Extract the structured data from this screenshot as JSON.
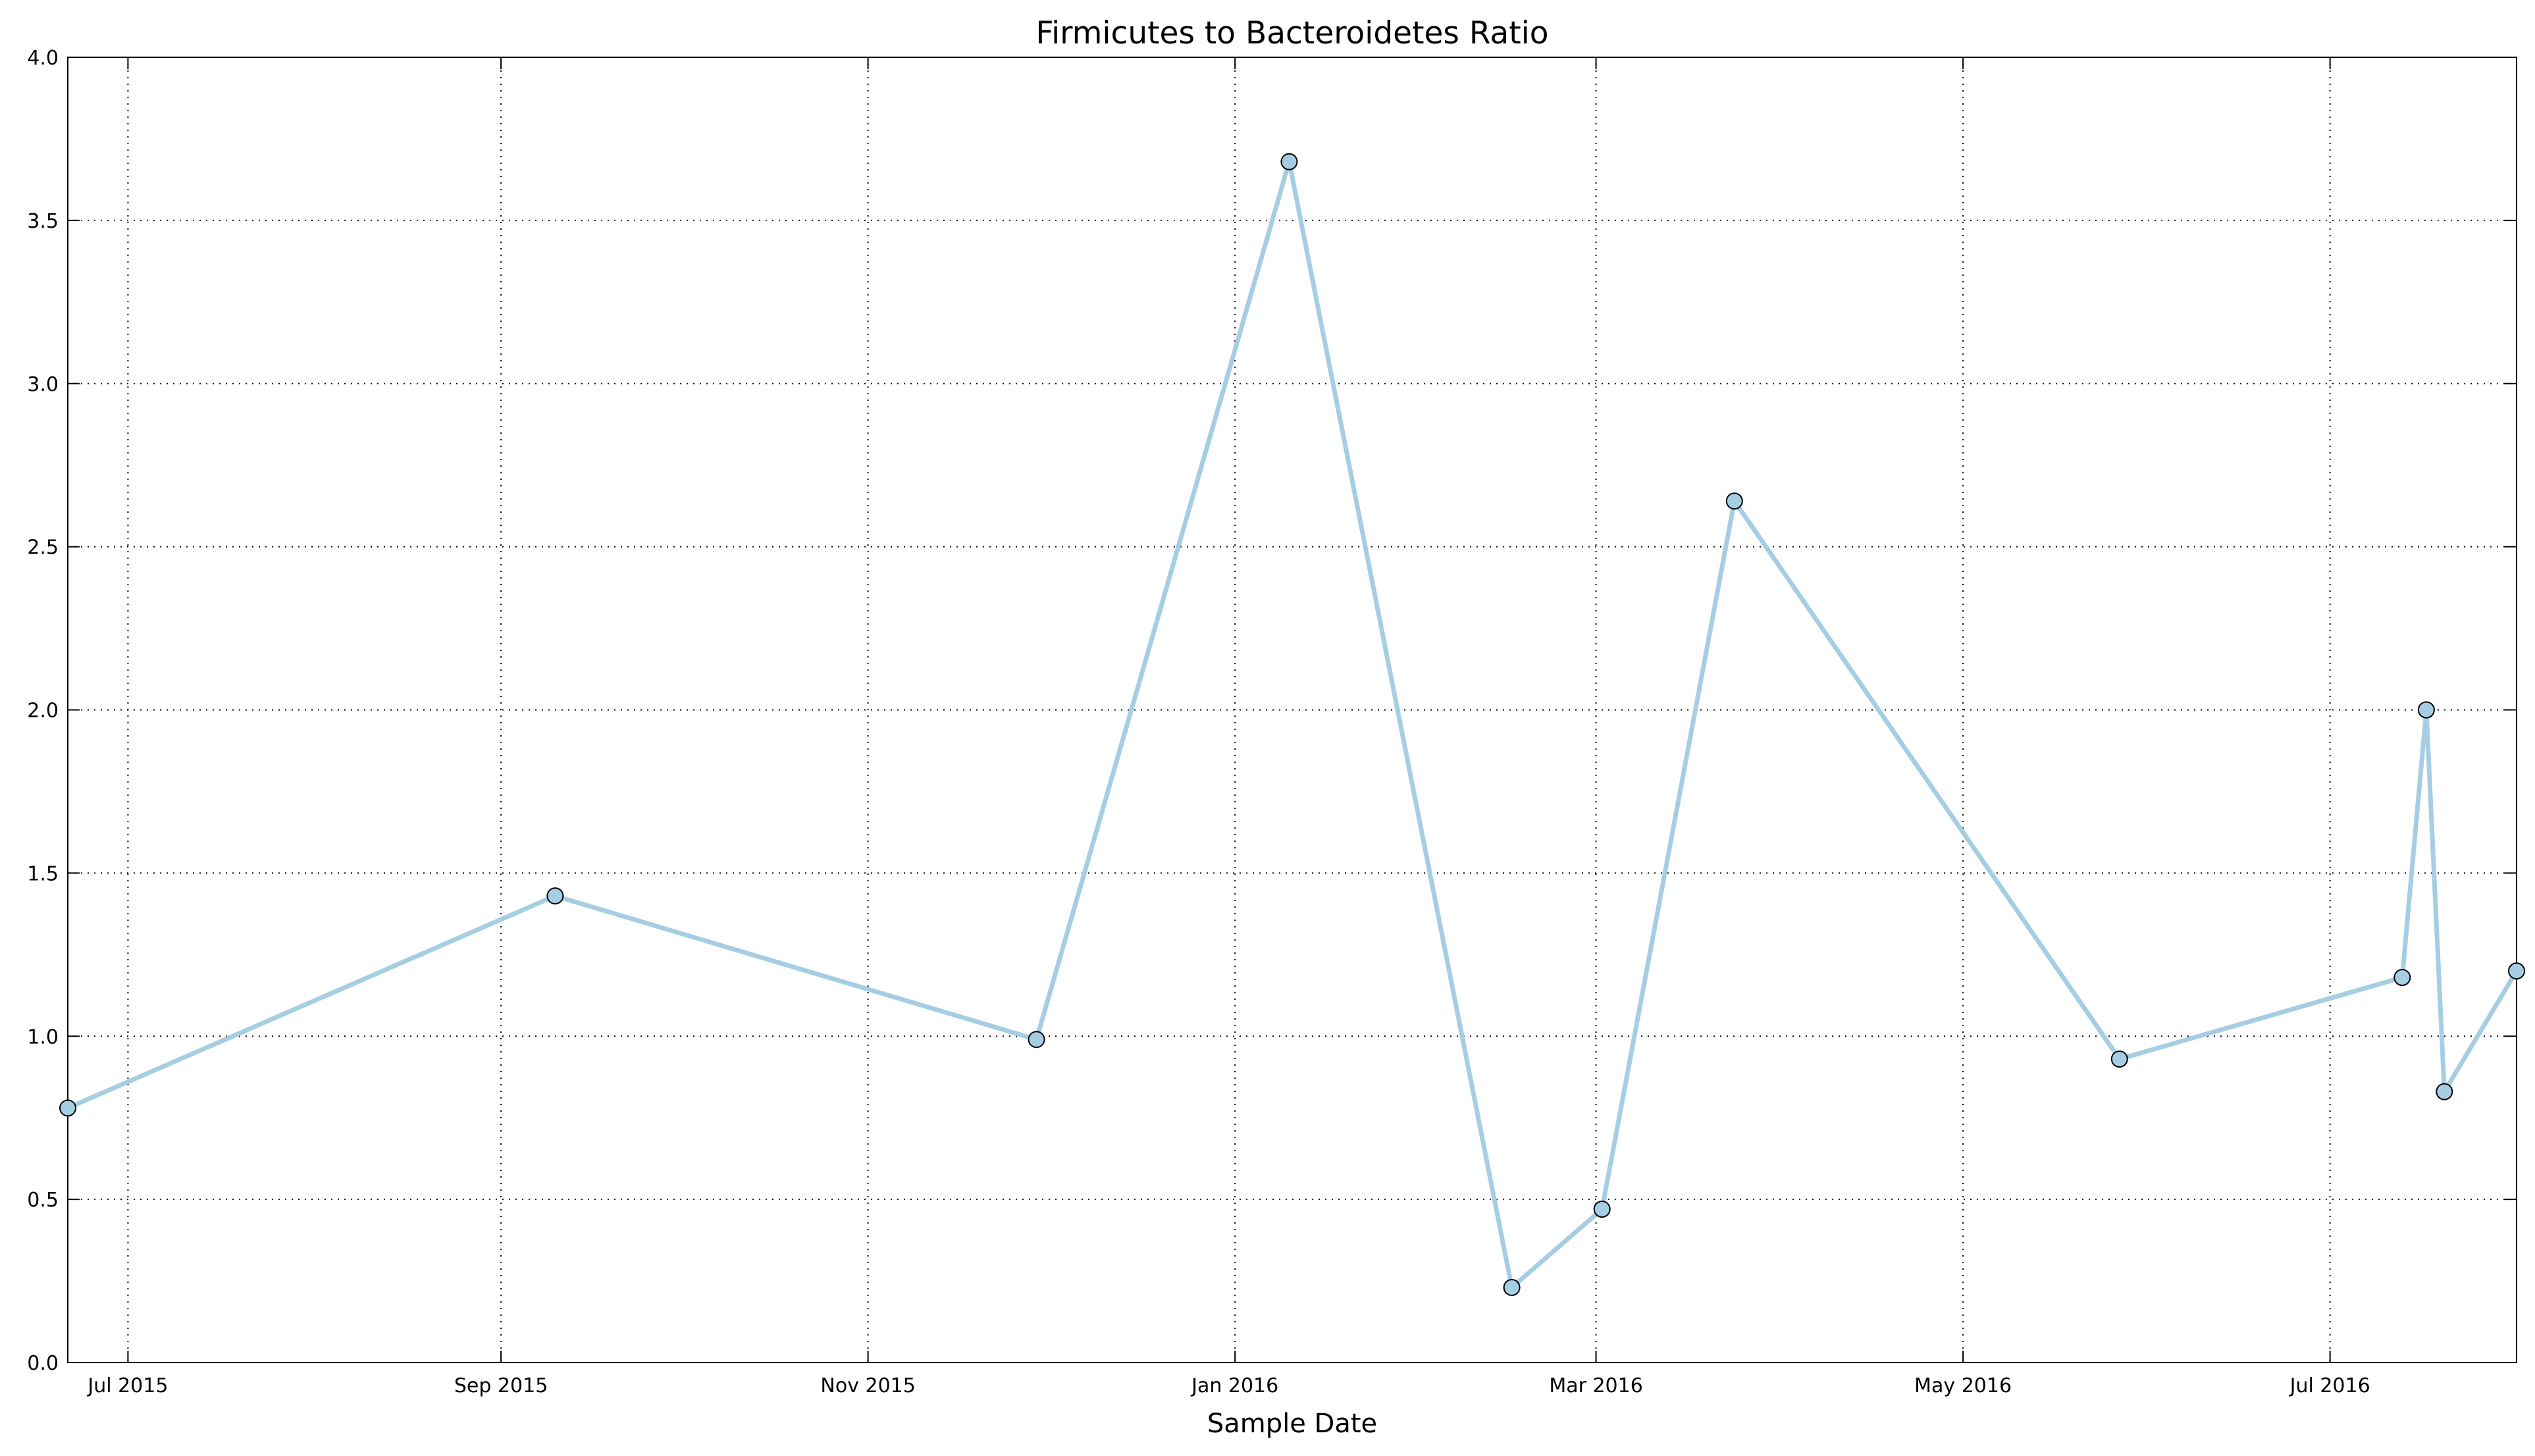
{
  "chart_data": {
    "type": "line",
    "title": "Firmicutes to Bacteroidetes Ratio",
    "xlabel": "Sample Date",
    "ylabel": "",
    "x_axis_type": "date",
    "xlim": [
      "2015-06-21",
      "2016-08-01"
    ],
    "ylim": [
      0.0,
      4.0
    ],
    "grid": true,
    "legend": "none",
    "line_color": "#a6cee3",
    "marker_color": "#a6cee3",
    "marker_edge_color": "#000000",
    "x_ticks": [
      {
        "date": "2015-07-01",
        "label": "Jul 2015"
      },
      {
        "date": "2015-09-01",
        "label": "Sep 2015"
      },
      {
        "date": "2015-11-01",
        "label": "Nov 2015"
      },
      {
        "date": "2016-01-01",
        "label": "Jan 2016"
      },
      {
        "date": "2016-03-01",
        "label": "Mar 2016"
      },
      {
        "date": "2016-05-01",
        "label": "May 2016"
      },
      {
        "date": "2016-07-01",
        "label": "Jul 2016"
      }
    ],
    "y_ticks": [
      {
        "value": 0.0,
        "label": "0.0"
      },
      {
        "value": 0.5,
        "label": "0.5"
      },
      {
        "value": 1.0,
        "label": "1.0"
      },
      {
        "value": 1.5,
        "label": "1.5"
      },
      {
        "value": 2.0,
        "label": "2.0"
      },
      {
        "value": 2.5,
        "label": "2.5"
      },
      {
        "value": 3.0,
        "label": "3.0"
      },
      {
        "value": 3.5,
        "label": "3.5"
      },
      {
        "value": 4.0,
        "label": "4.0"
      }
    ],
    "series": [
      {
        "points": [
          {
            "x": "2015-06-21",
            "y": 0.78
          },
          {
            "x": "2015-09-10",
            "y": 1.43
          },
          {
            "x": "2015-11-29",
            "y": 0.99
          },
          {
            "x": "2016-01-10",
            "y": 3.68
          },
          {
            "x": "2016-02-16",
            "y": 0.23
          },
          {
            "x": "2016-03-02",
            "y": 0.47
          },
          {
            "x": "2016-03-24",
            "y": 2.64
          },
          {
            "x": "2016-05-27",
            "y": 0.93
          },
          {
            "x": "2016-07-13",
            "y": 1.18
          },
          {
            "x": "2016-07-17",
            "y": 2.0
          },
          {
            "x": "2016-07-20",
            "y": 0.83
          },
          {
            "x": "2016-08-01",
            "y": 1.2
          }
        ]
      }
    ]
  }
}
